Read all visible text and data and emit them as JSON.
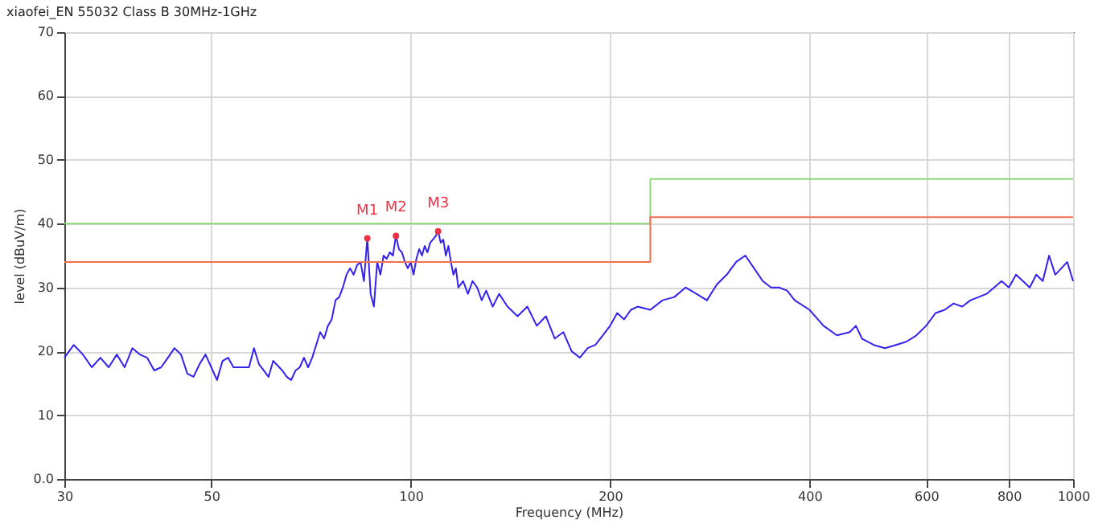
{
  "chart_data": {
    "type": "line",
    "title": "xiaofei_EN 55032 Class B 30MHz-1GHz",
    "xlabel": "Frequency (MHz)",
    "ylabel": "level (dBuV/m)",
    "log": "x",
    "grid": true,
    "xlim": [
      30,
      1000
    ],
    "xticks": [
      30,
      50,
      100,
      200,
      400,
      600,
      800,
      1000
    ],
    "ylim": [
      0,
      70
    ],
    "yticks": [
      {
        "value": 0,
        "label": "0.0"
      },
      10,
      20,
      30,
      40,
      50,
      60,
      70
    ],
    "series": [
      {
        "color": "#3322ee",
        "x": [
          30,
          31,
          32,
          33,
          34,
          35,
          36,
          37,
          38,
          39,
          40,
          41,
          42,
          43,
          44,
          45,
          46,
          47,
          48,
          49,
          50,
          51,
          52,
          53,
          54,
          55,
          57,
          58,
          59,
          60,
          61,
          62,
          64,
          65,
          66,
          67,
          68,
          69,
          70,
          71,
          72,
          73,
          74,
          75,
          76,
          77,
          78,
          79,
          80,
          81,
          82,
          83,
          84,
          85,
          86,
          87,
          88,
          89,
          90,
          91,
          92,
          93,
          94,
          95,
          96,
          97,
          98,
          99,
          100,
          101,
          102,
          103,
          104,
          105,
          106,
          107,
          108,
          109,
          110,
          111,
          112,
          113,
          114,
          115,
          116,
          117,
          118,
          120,
          122,
          124,
          126,
          128,
          130,
          133,
          136,
          140,
          145,
          150,
          155,
          160,
          165,
          170,
          175,
          180,
          185,
          190,
          195,
          200,
          205,
          210,
          215,
          220,
          230,
          240,
          250,
          260,
          270,
          280,
          290,
          300,
          310,
          320,
          330,
          340,
          350,
          360,
          370,
          380,
          400,
          420,
          440,
          460,
          470,
          480,
          500,
          520,
          540,
          560,
          580,
          600,
          620,
          640,
          660,
          680,
          700,
          720,
          740,
          760,
          780,
          800,
          820,
          840,
          860,
          880,
          900,
          920,
          940,
          960,
          980,
          1000
        ],
        "values": [
          19,
          21,
          19.5,
          17.5,
          19,
          17.5,
          19.5,
          17.5,
          20.5,
          19.5,
          19,
          17,
          17.5,
          19,
          20.5,
          19.5,
          16.5,
          16,
          18,
          19.5,
          17.5,
          15.5,
          18.5,
          19,
          17.5,
          17.5,
          17.5,
          20.5,
          18,
          17,
          16,
          18.5,
          17,
          16,
          15.5,
          17,
          17.5,
          19,
          17.5,
          19,
          21,
          23,
          22,
          24,
          25,
          28,
          28.5,
          30,
          32,
          33,
          32,
          33.5,
          34,
          31,
          37.7,
          29,
          27,
          34,
          32,
          35,
          34.5,
          35.5,
          35,
          38.1,
          36,
          35.5,
          34,
          33,
          34,
          32,
          34.5,
          36,
          35,
          36.5,
          35.5,
          37,
          37.5,
          38,
          38.8,
          37,
          37.5,
          35,
          36.5,
          34,
          32,
          33,
          30,
          31,
          29,
          31,
          30,
          28,
          29.5,
          27,
          29,
          27,
          25.5,
          27,
          24,
          25.5,
          22,
          23,
          20,
          19,
          20.5,
          21,
          22.5,
          24,
          26,
          25,
          26.5,
          27,
          26.5,
          28,
          28.5,
          30,
          29,
          28,
          30.5,
          32,
          34,
          35,
          33,
          31,
          30,
          30,
          29.5,
          28,
          26.5,
          24,
          22.5,
          23,
          24,
          22,
          21,
          20.5,
          21,
          21.5,
          22.5,
          24,
          26,
          26.5,
          27.5,
          27,
          28,
          28.5,
          29,
          30,
          31,
          30,
          32,
          31,
          30,
          32,
          31,
          35,
          32,
          33,
          34,
          31
        ]
      },
      {
        "color": "#8fd67a",
        "x": [
          30,
          230,
          230,
          1000
        ],
        "values": [
          40,
          40,
          47,
          47
        ]
      },
      {
        "color": "#f07050",
        "x": [
          30,
          230,
          230,
          1000
        ],
        "values": [
          34,
          34,
          41,
          41
        ]
      },
      {
        "type": "scatter",
        "color": "#ee3344",
        "x": [
          86,
          95,
          110
        ],
        "values": [
          37.7,
          38.1,
          38.8
        ]
      }
    ],
    "annotations": [
      {
        "text": "M1",
        "x": 86,
        "y": 37.7
      },
      {
        "text": "M2",
        "x": 95,
        "y": 38.1
      },
      {
        "text": "M3",
        "x": 110,
        "y": 38.8
      }
    ]
  }
}
